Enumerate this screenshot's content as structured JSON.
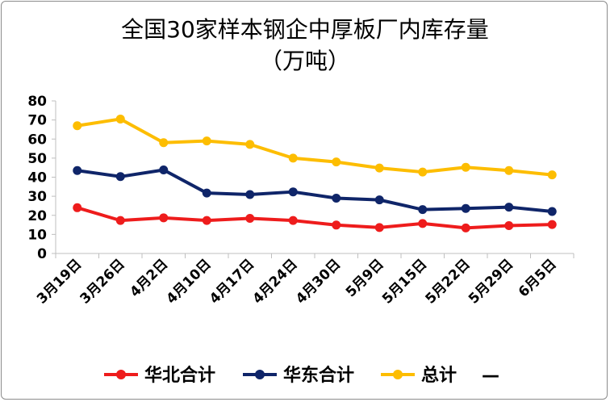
{
  "chart_data": {
    "type": "line",
    "title_line1": "全国30家样本钢企中厚板厂内库存量",
    "title_line2": "（万吨）",
    "categories": [
      "3月19日",
      "3月26日",
      "4月2日",
      "4月10日",
      "4月17日",
      "4月24日",
      "4月30日",
      "5月9日",
      "5月15日",
      "5月22日",
      "5月29日",
      "6月5日"
    ],
    "ylim": [
      0,
      80
    ],
    "yticks": [
      0,
      10,
      20,
      30,
      40,
      50,
      60,
      70,
      80
    ],
    "grid": false,
    "legend_position": "bottom",
    "series": [
      {
        "name": "华北合计",
        "color": "#ee1c1c",
        "values": [
          24,
          17.3,
          18.7,
          17.3,
          18.4,
          17.3,
          14.9,
          13.6,
          15.7,
          13.4,
          14.6,
          15.2
        ]
      },
      {
        "name": "华东合计",
        "color": "#0f2569",
        "values": [
          43.5,
          40.3,
          43.8,
          31.7,
          30.9,
          32.3,
          29.0,
          28.1,
          23.0,
          23.6,
          24.3,
          22.0
        ]
      },
      {
        "name": "总计",
        "color": "#fdbd00",
        "values": [
          67.0,
          70.5,
          58.1,
          59.0,
          57.2,
          50.0,
          48.0,
          44.8,
          42.7,
          45.2,
          43.5,
          41.2
        ]
      }
    ],
    "legend_suffix": "—"
  }
}
